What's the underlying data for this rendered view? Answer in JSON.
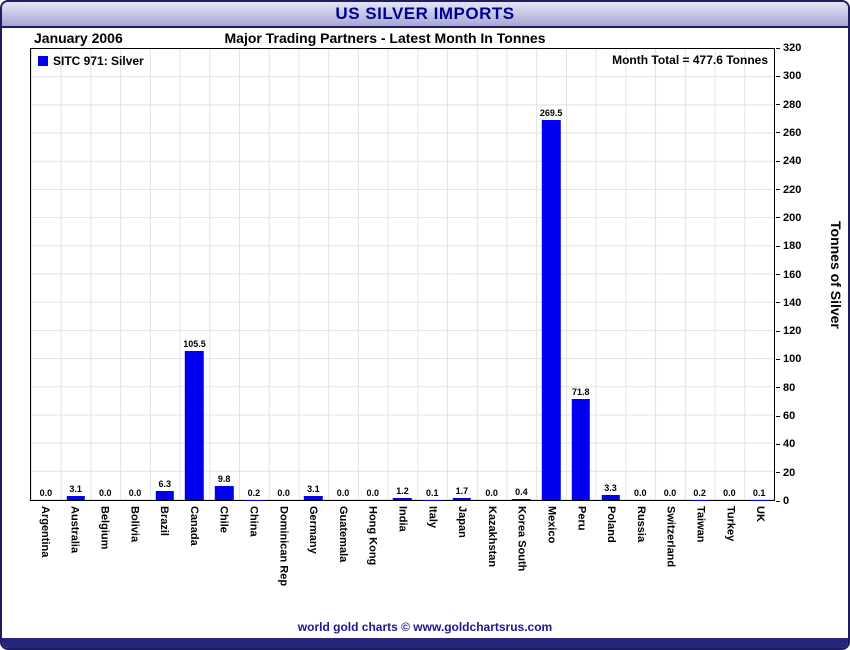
{
  "title": "US SILVER IMPORTS",
  "date_label": "January 2006",
  "subtitle": "Major Trading Partners - Latest Month In Tonnes",
  "legend": {
    "label": "SITC 971: Silver"
  },
  "month_total": "Month Total = 477.6 Tonnes",
  "y_axis_title": "Tonnes of Silver",
  "footer": "world gold charts © www.goldchartsrus.com",
  "colors": {
    "bar": "#0000ee",
    "title_text": "#000090",
    "footer_text": "#1a1a8c",
    "frame": "#1e1e5e",
    "grid": "#e2e2e2"
  },
  "chart_data": {
    "type": "bar",
    "title": "US SILVER IMPORTS",
    "subtitle": "Major Trading Partners - Latest Month In Tonnes",
    "period": "January 2006",
    "series_name": "SITC 971: Silver",
    "categories": [
      "Argentina",
      "Australia",
      "Belgium",
      "Bolivia",
      "Brazil",
      "Canada",
      "Chile",
      "China",
      "Dominican Rep",
      "Germany",
      "Guatemala",
      "Hong Kong",
      "India",
      "Italy",
      "Japan",
      "Kazakhstan",
      "Korea South",
      "Mexico",
      "Peru",
      "Poland",
      "Russia",
      "Switzerland",
      "Taiwan",
      "Turkey",
      "UK"
    ],
    "values": [
      0.0,
      3.1,
      0.0,
      0.0,
      6.3,
      105.5,
      9.8,
      0.2,
      0.0,
      3.1,
      0.0,
      0.0,
      1.2,
      0.1,
      1.7,
      0.0,
      0.4,
      269.5,
      71.8,
      3.3,
      0.0,
      0.0,
      0.2,
      0.0,
      0.1
    ],
    "month_total": 477.6,
    "ylabel": "Tonnes of Silver",
    "xlabel": "",
    "ylim": [
      0,
      320
    ],
    "ytick_step": 20,
    "grid": true,
    "legend_position": "top-left",
    "value_labels": true
  }
}
